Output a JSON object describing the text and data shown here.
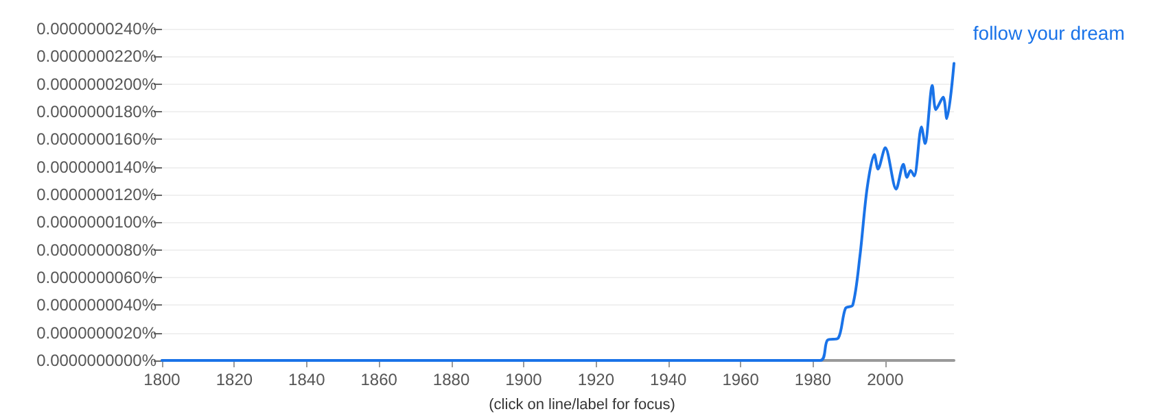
{
  "chart_data": {
    "type": "line",
    "x": [
      1800,
      1982,
      1984,
      1987,
      1989,
      1991,
      1993,
      1995,
      1997,
      1998,
      2000,
      2003,
      2005,
      2006,
      2007,
      2008,
      2010,
      2011,
      2013,
      2014,
      2016,
      2017,
      2019
    ],
    "series": [
      {
        "name": " follow your dream ",
        "color": "#1a73e8",
        "values": [
          0,
          0,
          1.46e-09,
          1.62e-09,
          3.77e-09,
          4e-09,
          7.57e-09,
          1.25e-08,
          1.49e-08,
          1.385e-08,
          1.54e-08,
          1.24e-08,
          1.42e-08,
          1.325e-08,
          1.375e-08,
          1.335e-08,
          1.69e-08,
          1.57e-08,
          1.99e-08,
          1.815e-08,
          1.905e-08,
          1.75e-08,
          2.15e-08
        ]
      }
    ],
    "xlim": [
      1800,
      2019
    ],
    "xticks": [
      1800,
      1820,
      1840,
      1860,
      1880,
      1900,
      1920,
      1940,
      1960,
      1980,
      2000
    ],
    "ylim": [
      0,
      2.4e-08
    ],
    "yticks": [
      {
        "value": 0,
        "label": "0.0000000000%"
      },
      {
        "value": 2e-09,
        "label": "0.0000000020%"
      },
      {
        "value": 4e-09,
        "label": "0.0000000040%"
      },
      {
        "value": 6e-09,
        "label": "0.0000000060%"
      },
      {
        "value": 8e-09,
        "label": "0.0000000080%"
      },
      {
        "value": 1e-08,
        "label": "0.0000000100%"
      },
      {
        "value": 1.2e-08,
        "label": "0.0000000120%"
      },
      {
        "value": 1.4e-08,
        "label": "0.0000000140%"
      },
      {
        "value": 1.6e-08,
        "label": "0.0000000160%"
      },
      {
        "value": 1.8e-08,
        "label": "0.0000000180%"
      },
      {
        "value": 2e-08,
        "label": "0.0000000200%"
      },
      {
        "value": 2.2e-08,
        "label": "0.0000000220%"
      },
      {
        "value": 2.4e-08,
        "label": "0.0000000240%"
      }
    ],
    "grid": "y",
    "legend": false,
    "marker": "none",
    "line_style": "solid",
    "annotations": [
      "(click on line/label for focus)"
    ]
  }
}
